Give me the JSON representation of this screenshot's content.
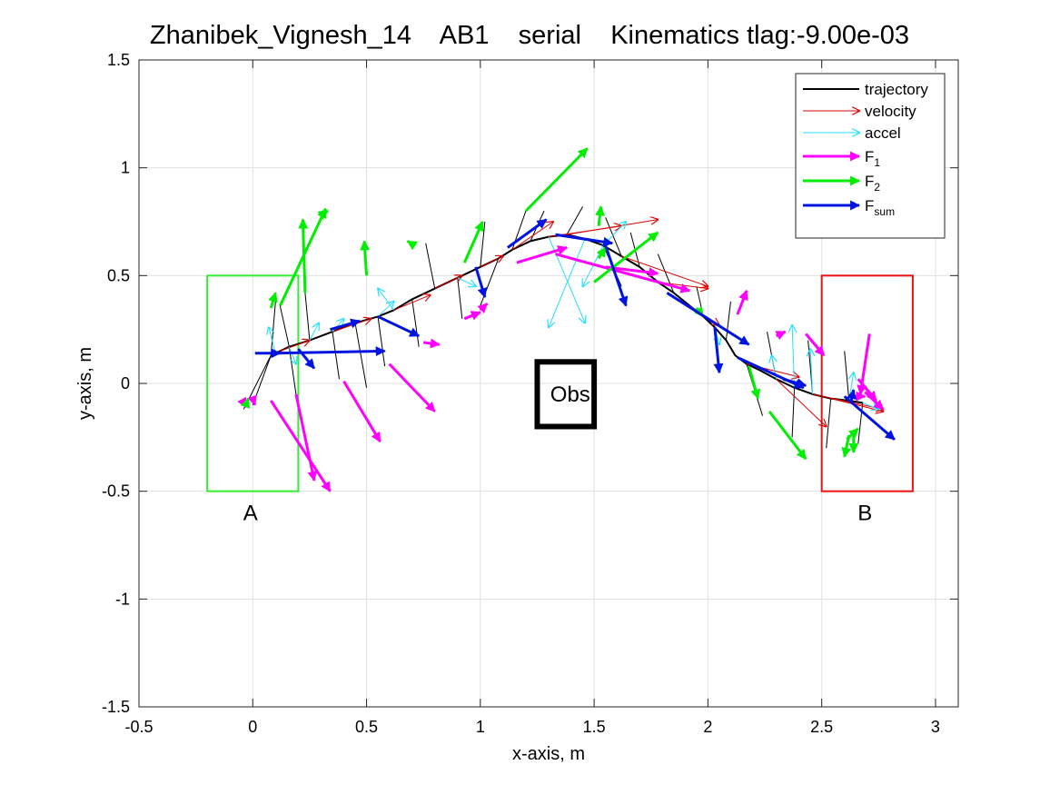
{
  "chart_data": {
    "type": "scatter",
    "title": "Zhanibek_Vignesh_14    AB1    serial    Kinematics tlag:-9.00e-03",
    "xlabel": "x-axis, m",
    "ylabel": "y-axis, m",
    "xlim": [
      -0.5,
      3.1
    ],
    "ylim": [
      -1.5,
      1.5
    ],
    "xticks": [
      -0.5,
      0,
      0.5,
      1,
      1.5,
      2,
      2.5,
      3
    ],
    "xtick_labels": [
      "-0.5",
      "0",
      "0.5",
      "1",
      "1.5",
      "2",
      "2.5",
      "3"
    ],
    "yticks": [
      -1.5,
      -1,
      -0.5,
      0,
      0.5,
      1,
      1.5
    ],
    "ytick_labels": [
      "-1.5",
      "-1",
      "-0.5",
      "0",
      "0.5",
      "1",
      "1.5"
    ],
    "grid": true,
    "legend_position": "top-right",
    "colors": {
      "trajectory": "#000000",
      "velocity": "#e00000",
      "accel": "#22e0ff",
      "F1": "#ff00ff",
      "F2": "#00ee00",
      "Fsum": "#0014e0",
      "start_box": "#33ee33",
      "end_box": "#ee1111",
      "obstacle": "#000000",
      "grid": "#e1e1e1"
    },
    "legend": [
      {
        "key": "trajectory",
        "label": "trajectory",
        "sub": "",
        "style": "line"
      },
      {
        "key": "velocity",
        "label": "velocity",
        "sub": "",
        "style": "thin-arrow"
      },
      {
        "key": "accel",
        "label": "accel",
        "sub": "",
        "style": "thin-arrow"
      },
      {
        "key": "F1",
        "label": "F",
        "sub": "1",
        "style": "thick-arrow"
      },
      {
        "key": "F2",
        "label": "F",
        "sub": "2",
        "style": "thick-arrow"
      },
      {
        "key": "Fsum",
        "label": "F",
        "sub": "sum",
        "style": "thick-arrow"
      }
    ],
    "regions": [
      {
        "name": "start-region",
        "label": "A",
        "x": [
          -0.2,
          0.2
        ],
        "y": [
          -0.5,
          0.5
        ],
        "label_at": [
          -0.01,
          -0.6
        ]
      },
      {
        "name": "end-region",
        "label": "B",
        "x": [
          2.5,
          2.9
        ],
        "y": [
          -0.5,
          0.5
        ],
        "label_at": [
          2.69,
          -0.6
        ]
      }
    ],
    "obstacle": {
      "label": "Obs",
      "x": [
        1.25,
        1.5
      ],
      "y": [
        -0.2,
        0.1
      ]
    },
    "trajectory": [
      [
        0.08,
        0.13
      ],
      [
        0.16,
        0.17
      ],
      [
        0.25,
        0.2
      ],
      [
        0.35,
        0.24
      ],
      [
        0.45,
        0.28
      ],
      [
        0.55,
        0.31
      ],
      [
        0.62,
        0.34
      ],
      [
        0.7,
        0.39
      ],
      [
        0.8,
        0.44
      ],
      [
        0.9,
        0.49
      ],
      [
        1.0,
        0.54
      ],
      [
        1.08,
        0.58
      ],
      [
        1.14,
        0.62
      ],
      [
        1.22,
        0.66
      ],
      [
        1.3,
        0.68
      ],
      [
        1.38,
        0.69
      ],
      [
        1.46,
        0.67
      ],
      [
        1.54,
        0.64
      ],
      [
        1.62,
        0.59
      ],
      [
        1.7,
        0.54
      ],
      [
        1.78,
        0.47
      ],
      [
        1.85,
        0.42
      ],
      [
        1.92,
        0.36
      ],
      [
        1.98,
        0.31
      ],
      [
        2.03,
        0.26
      ],
      [
        2.08,
        0.2
      ],
      [
        2.12,
        0.13
      ],
      [
        2.17,
        0.09
      ],
      [
        2.23,
        0.06
      ],
      [
        2.3,
        0.02
      ],
      [
        2.38,
        -0.02
      ],
      [
        2.46,
        -0.05
      ],
      [
        2.54,
        -0.07
      ],
      [
        2.62,
        -0.08
      ],
      [
        2.68,
        -0.09
      ]
    ],
    "spokes": [
      [
        [
          0.08,
          0.13
        ],
        [
          -0.04,
          -0.12
        ]
      ],
      [
        [
          0.08,
          0.13
        ],
        [
          0.0,
          -0.1
        ]
      ],
      [
        [
          0.08,
          0.13
        ],
        [
          0.1,
          0.38
        ]
      ],
      [
        [
          0.16,
          0.17
        ],
        [
          0.19,
          -0.05
        ]
      ],
      [
        [
          0.16,
          0.17
        ],
        [
          0.12,
          0.36
        ]
      ],
      [
        [
          0.25,
          0.2
        ],
        [
          0.23,
          0.42
        ]
      ],
      [
        [
          0.35,
          0.24
        ],
        [
          0.38,
          0.02
        ]
      ],
      [
        [
          0.45,
          0.28
        ],
        [
          0.5,
          -0.02
        ]
      ],
      [
        [
          0.55,
          0.31
        ],
        [
          0.58,
          0.08
        ]
      ],
      [
        [
          0.7,
          0.39
        ],
        [
          0.73,
          0.17
        ]
      ],
      [
        [
          0.8,
          0.44
        ],
        [
          0.76,
          0.65
        ]
      ],
      [
        [
          0.9,
          0.49
        ],
        [
          0.92,
          0.3
        ]
      ],
      [
        [
          1.0,
          0.54
        ],
        [
          1.02,
          0.75
        ]
      ],
      [
        [
          1.08,
          0.58
        ],
        [
          1.0,
          0.36
        ]
      ],
      [
        [
          1.14,
          0.62
        ],
        [
          1.2,
          0.8
        ]
      ],
      [
        [
          1.22,
          0.66
        ],
        [
          1.28,
          0.8
        ]
      ],
      [
        [
          1.38,
          0.69
        ],
        [
          1.45,
          0.82
        ]
      ],
      [
        [
          1.54,
          0.64
        ],
        [
          1.62,
          0.45
        ]
      ],
      [
        [
          1.62,
          0.59
        ],
        [
          1.55,
          0.77
        ]
      ],
      [
        [
          1.7,
          0.54
        ],
        [
          1.66,
          0.7
        ]
      ],
      [
        [
          1.85,
          0.42
        ],
        [
          1.78,
          0.6
        ]
      ],
      [
        [
          1.98,
          0.31
        ],
        [
          1.95,
          0.45
        ]
      ],
      [
        [
          2.08,
          0.2
        ],
        [
          2.1,
          0.38
        ]
      ],
      [
        [
          2.17,
          0.09
        ],
        [
          2.24,
          -0.15
        ]
      ],
      [
        [
          2.3,
          0.02
        ],
        [
          2.26,
          0.24
        ]
      ],
      [
        [
          2.38,
          -0.02
        ],
        [
          2.37,
          -0.25
        ]
      ],
      [
        [
          2.46,
          -0.05
        ],
        [
          2.44,
          0.2
        ]
      ],
      [
        [
          2.54,
          -0.07
        ],
        [
          2.52,
          -0.3
        ]
      ],
      [
        [
          2.62,
          -0.08
        ],
        [
          2.6,
          0.15
        ]
      ],
      [
        [
          2.68,
          -0.09
        ],
        [
          2.66,
          -0.28
        ]
      ]
    ],
    "velocity": [
      [
        [
          0.12,
          0.15
        ],
        [
          0.25,
          0.2
        ]
      ],
      [
        [
          0.35,
          0.24
        ],
        [
          0.52,
          0.3
        ]
      ],
      [
        [
          0.62,
          0.34
        ],
        [
          0.78,
          0.41
        ]
      ],
      [
        [
          0.8,
          0.44
        ],
        [
          0.92,
          0.5
        ]
      ],
      [
        [
          1.0,
          0.54
        ],
        [
          1.1,
          0.59
        ]
      ],
      [
        [
          1.14,
          0.62
        ],
        [
          1.32,
          0.75
        ]
      ],
      [
        [
          1.3,
          0.68
        ],
        [
          1.62,
          0.73
        ]
      ],
      [
        [
          1.38,
          0.69
        ],
        [
          1.78,
          0.76
        ]
      ],
      [
        [
          1.62,
          0.59
        ],
        [
          2.0,
          0.45
        ]
      ],
      [
        [
          1.78,
          0.47
        ],
        [
          2.0,
          0.44
        ]
      ],
      [
        [
          1.92,
          0.36
        ],
        [
          2.05,
          0.27
        ]
      ],
      [
        [
          2.17,
          0.09
        ],
        [
          2.4,
          0.03
        ]
      ],
      [
        [
          2.3,
          0.02
        ],
        [
          2.52,
          -0.2
        ]
      ],
      [
        [
          2.46,
          -0.05
        ],
        [
          2.77,
          -0.12
        ]
      ],
      [
        [
          2.54,
          -0.07
        ],
        [
          2.77,
          -0.13
        ]
      ]
    ],
    "accel": [
      [
        [
          0.1,
          0.14
        ],
        [
          0.07,
          0.26
        ]
      ],
      [
        [
          0.16,
          0.17
        ],
        [
          0.19,
          0.09
        ]
      ],
      [
        [
          0.25,
          0.2
        ],
        [
          0.29,
          0.28
        ]
      ],
      [
        [
          0.35,
          0.24
        ],
        [
          0.4,
          0.3
        ]
      ],
      [
        [
          0.55,
          0.31
        ],
        [
          0.62,
          0.38
        ]
      ],
      [
        [
          0.62,
          0.34
        ],
        [
          0.55,
          0.44
        ]
      ],
      [
        [
          0.9,
          0.49
        ],
        [
          0.98,
          0.45
        ]
      ],
      [
        [
          1.3,
          0.68
        ],
        [
          1.46,
          0.28
        ]
      ],
      [
        [
          1.46,
          0.67
        ],
        [
          1.3,
          0.26
        ]
      ],
      [
        [
          1.54,
          0.64
        ],
        [
          1.64,
          0.75
        ]
      ],
      [
        [
          1.54,
          0.64
        ],
        [
          1.45,
          0.45
        ]
      ],
      [
        [
          2.03,
          0.26
        ],
        [
          2.05,
          0.18
        ]
      ],
      [
        [
          2.3,
          0.02
        ],
        [
          2.28,
          0.13
        ]
      ],
      [
        [
          2.38,
          -0.02
        ],
        [
          2.37,
          0.27
        ]
      ],
      [
        [
          2.46,
          -0.05
        ],
        [
          2.45,
          0.16
        ]
      ],
      [
        [
          2.62,
          -0.08
        ],
        [
          2.64,
          0.05
        ]
      ],
      [
        [
          2.68,
          -0.09
        ],
        [
          2.75,
          -0.12
        ]
      ]
    ],
    "F1": [
      [
        [
          -0.04,
          -0.09
        ],
        [
          -0.03,
          -0.11
        ]
      ],
      [
        [
          0.0,
          -0.07
        ],
        [
          0.01,
          -0.1
        ]
      ],
      [
        [
          0.08,
          -0.08
        ],
        [
          0.34,
          -0.5
        ]
      ],
      [
        [
          0.19,
          -0.05
        ],
        [
          0.27,
          -0.45
        ]
      ],
      [
        [
          0.4,
          0.01
        ],
        [
          0.56,
          -0.27
        ]
      ],
      [
        [
          0.6,
          0.09
        ],
        [
          0.8,
          -0.13
        ]
      ],
      [
        [
          0.75,
          0.19
        ],
        [
          0.82,
          0.18
        ]
      ],
      [
        [
          0.93,
          0.3
        ],
        [
          1.0,
          0.33
        ]
      ],
      [
        [
          1.0,
          0.34
        ],
        [
          1.03,
          0.37
        ]
      ],
      [
        [
          1.16,
          0.56
        ],
        [
          1.38,
          0.63
        ]
      ],
      [
        [
          1.33,
          0.6
        ],
        [
          1.92,
          0.43
        ]
      ],
      [
        [
          1.55,
          0.54
        ],
        [
          1.78,
          0.51
        ]
      ],
      [
        [
          2.13,
          0.32
        ],
        [
          2.17,
          0.43
        ]
      ],
      [
        [
          2.3,
          0.22
        ],
        [
          2.34,
          0.24
        ]
      ],
      [
        [
          2.43,
          0.23
        ],
        [
          2.51,
          0.13
        ]
      ],
      [
        [
          2.71,
          0.23
        ],
        [
          2.67,
          -0.05
        ]
      ],
      [
        [
          2.66,
          0.02
        ],
        [
          2.74,
          -0.08
        ]
      ],
      [
        [
          2.69,
          -0.04
        ],
        [
          2.77,
          -0.12
        ]
      ],
      [
        [
          2.64,
          -0.06
        ],
        [
          2.69,
          -0.06
        ]
      ]
    ],
    "F2": [
      [
        [
          -0.03,
          -0.1
        ],
        [
          -0.02,
          -0.07
        ]
      ],
      [
        [
          0.08,
          0.35
        ],
        [
          0.1,
          0.42
        ]
      ],
      [
        [
          0.12,
          0.36
        ],
        [
          0.32,
          0.81
        ]
      ],
      [
        [
          0.23,
          0.42
        ],
        [
          0.22,
          0.76
        ]
      ],
      [
        [
          0.3,
          0.78
        ],
        [
          0.33,
          0.8
        ]
      ],
      [
        [
          0.5,
          0.5
        ],
        [
          0.49,
          0.66
        ]
      ],
      [
        [
          0.71,
          0.64
        ],
        [
          0.68,
          0.66
        ]
      ],
      [
        [
          0.93,
          0.56
        ],
        [
          1.01,
          0.75
        ]
      ],
      [
        [
          1.2,
          0.8
        ],
        [
          1.47,
          1.09
        ]
      ],
      [
        [
          1.52,
          0.58
        ],
        [
          1.55,
          0.63
        ]
      ],
      [
        [
          1.52,
          0.73
        ],
        [
          1.53,
          0.82
        ]
      ],
      [
        [
          1.5,
          0.47
        ],
        [
          1.78,
          0.7
        ]
      ],
      [
        [
          1.95,
          0.35
        ],
        [
          1.98,
          0.31
        ]
      ],
      [
        [
          2.18,
          0.08
        ],
        [
          2.22,
          -0.07
        ]
      ],
      [
        [
          2.27,
          -0.13
        ],
        [
          2.43,
          -0.35
        ]
      ],
      [
        [
          2.61,
          -0.26
        ],
        [
          2.66,
          -0.21
        ]
      ],
      [
        [
          2.62,
          -0.24
        ],
        [
          2.6,
          -0.34
        ]
      ],
      [
        [
          2.64,
          -0.24
        ],
        [
          2.64,
          -0.32
        ]
      ]
    ],
    "Fsum": [
      [
        [
          0.01,
          0.14
        ],
        [
          0.12,
          0.14
        ]
      ],
      [
        [
          0.09,
          0.14
        ],
        [
          0.58,
          0.15
        ]
      ],
      [
        [
          0.2,
          0.16
        ],
        [
          0.27,
          0.07
        ]
      ],
      [
        [
          0.34,
          0.25
        ],
        [
          0.47,
          0.29
        ]
      ],
      [
        [
          0.55,
          0.31
        ],
        [
          0.73,
          0.22
        ]
      ],
      [
        [
          0.98,
          0.54
        ],
        [
          1.02,
          0.4
        ]
      ],
      [
        [
          1.12,
          0.63
        ],
        [
          1.29,
          0.76
        ]
      ],
      [
        [
          1.33,
          0.69
        ],
        [
          1.58,
          0.65
        ]
      ],
      [
        [
          1.55,
          0.64
        ],
        [
          1.64,
          0.36
        ]
      ],
      [
        [
          1.82,
          0.42
        ],
        [
          2.18,
          0.18
        ]
      ],
      [
        [
          2.03,
          0.26
        ],
        [
          2.05,
          0.05
        ]
      ],
      [
        [
          2.13,
          0.12
        ],
        [
          2.42,
          -0.02
        ]
      ],
      [
        [
          2.33,
          0.02
        ],
        [
          2.43,
          -0.01
        ]
      ],
      [
        [
          2.6,
          -0.06
        ],
        [
          2.82,
          -0.26
        ]
      ],
      [
        [
          2.63,
          -0.08
        ],
        [
          2.64,
          -0.03
        ]
      ]
    ]
  }
}
